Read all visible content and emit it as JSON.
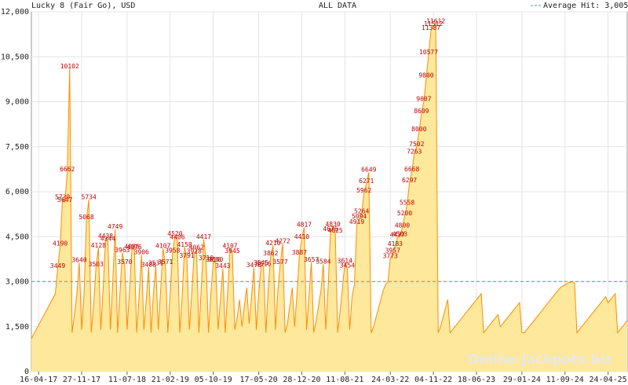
{
  "chart_data": {
    "type": "area",
    "title": "Lucky 8 (Fair Go), USD",
    "subtitle": "ALL DATA",
    "watermark": "Online-Jackpots.biz",
    "color": "#ff8c00",
    "fill": "#fde89b",
    "average": {
      "value": 3005,
      "label": "Average Hit: 3,005",
      "color": "#4a9cc9"
    },
    "grid": true,
    "ylim": [
      0,
      12000
    ],
    "yticks": [
      0,
      {
        "value": 1500,
        "label": "1,500"
      },
      {
        "value": 3000,
        "label": "3,000"
      },
      {
        "value": 4500,
        "label": "4,500"
      },
      {
        "value": 6000,
        "label": "6,000"
      },
      {
        "value": 7500,
        "label": "7,500"
      },
      {
        "value": 9000,
        "label": "9,000"
      },
      {
        "value": 10500,
        "label": "10,500"
      },
      {
        "value": 12000,
        "label": "12,000"
      }
    ],
    "categories": [
      null,
      null,
      null,
      "16-04-17",
      null,
      null,
      null,
      null,
      null,
      null,
      null,
      null,
      null,
      null,
      null,
      null,
      null,
      null,
      null,
      null,
      null,
      "27-11-17",
      null,
      null,
      null,
      null,
      null,
      null,
      null,
      null,
      null,
      null,
      null,
      null,
      null,
      null,
      null,
      null,
      null,
      null,
      "11-07-18",
      null,
      null,
      null,
      null,
      null,
      null,
      null,
      null,
      null,
      null,
      null,
      null,
      null,
      null,
      null,
      null,
      null,
      "21-02-19",
      null,
      null,
      null,
      null,
      null,
      null,
      null,
      null,
      null,
      null,
      null,
      null,
      null,
      null,
      null,
      null,
      null,
      "05-10-19",
      null,
      null,
      null,
      null,
      null,
      null,
      null,
      null,
      null,
      null,
      null,
      null,
      null,
      null,
      null,
      null,
      null,
      null,
      "17-05-20",
      null,
      null,
      null,
      null,
      null,
      null,
      null,
      null,
      null,
      null,
      null,
      null,
      null,
      null,
      null,
      null,
      null,
      "28-12-20",
      null,
      null,
      null,
      null,
      null,
      null,
      null,
      null,
      null,
      null,
      null,
      null,
      null,
      null,
      null,
      null,
      null,
      "11-08-21",
      null,
      null,
      null,
      null,
      null,
      null,
      null,
      null,
      null,
      null,
      null,
      null,
      null,
      null,
      null,
      null,
      null,
      null,
      "24-03-22",
      null,
      null,
      null,
      null,
      null,
      null,
      null,
      null,
      null,
      null,
      null,
      null,
      null,
      null,
      null,
      null,
      null,
      "04-11-22",
      null,
      null,
      null,
      null,
      null,
      null,
      null,
      null,
      null,
      null,
      null,
      null,
      null,
      null,
      null,
      null,
      null,
      "18-06-23",
      null,
      null,
      null,
      null,
      null,
      null,
      null,
      null,
      null,
      null,
      null,
      null,
      null,
      null,
      null,
      null,
      null,
      null,
      "29-01-24",
      null,
      null,
      null,
      null,
      null,
      null,
      null,
      null,
      null,
      null,
      null,
      null,
      null,
      null,
      null,
      null,
      null,
      "11-09-24",
      null,
      null,
      null,
      null,
      null,
      null,
      null,
      null,
      null,
      null,
      null,
      null,
      null,
      null,
      null,
      null,
      null,
      "24-04-25",
      null,
      null,
      null,
      null,
      null,
      null,
      null,
      null
    ],
    "values": [
      1100,
      1250,
      1400,
      1550,
      1700,
      1850,
      2000,
      2150,
      2300,
      2450,
      2600,
      3449,
      4190,
      5739,
      5647,
      6662,
      10102,
      1300,
      1900,
      2600,
      3640,
      1400,
      2600,
      5068,
      5734,
      1300,
      2200,
      3503,
      4128,
      1400,
      2800,
      4438,
      4344,
      1400,
      3000,
      4749,
      1300,
      2600,
      3963,
      3570,
      1400,
      2700,
      4086,
      4076,
      1300,
      2500,
      3906,
      1400,
      2400,
      3488,
      1300,
      2600,
      3531,
      1400,
      2700,
      4107,
      3571,
      1300,
      2600,
      3958,
      4520,
      4406,
      1300,
      2500,
      4158,
      3791,
      1400,
      2600,
      3928,
      4062,
      1300,
      2800,
      4417,
      3710,
      1300,
      2600,
      3656,
      3650,
      1400,
      2400,
      3443,
      1300,
      2600,
      4107,
      3945,
      1400,
      1800,
      2400,
      1500,
      2200,
      2800,
      1600,
      2500,
      3470,
      1400,
      2600,
      3545,
      3516,
      1300,
      2800,
      3862,
      4210,
      1400,
      2700,
      3577,
      4272,
      1300,
      1600,
      2200,
      2800,
      1500,
      2600,
      3887,
      4410,
      4817,
      1400,
      2500,
      3657,
      1300,
      1700,
      2200,
      2700,
      3584,
      1400,
      2800,
      4676,
      4830,
      4625,
      1300,
      2000,
      2800,
      3614,
      3454,
      1400,
      2500,
      2900,
      4919,
      5094,
      5264,
      5962,
      6271,
      6649,
      1300,
      1500,
      1800,
      2100,
      2400,
      2700,
      2900,
      3000,
      3773,
      3957,
      4183,
      4477,
      4503,
      4800,
      5200,
      5558,
      6297,
      6668,
      7263,
      7502,
      8000,
      8609,
      9007,
      9800,
      10577,
      11387,
      11512,
      11612,
      1300,
      1500,
      1800,
      2100,
      2400,
      1300,
      1400,
      1500,
      1600,
      1700,
      1800,
      1900,
      2000,
      2100,
      2200,
      2300,
      2400,
      2500,
      2600,
      1300,
      1400,
      1500,
      1600,
      1700,
      1800,
      1900,
      1500,
      1600,
      1700,
      1800,
      1900,
      2000,
      2100,
      2200,
      2300,
      1300,
      1300,
      1400,
      1500,
      1600,
      1700,
      1800,
      1900,
      2000,
      2100,
      2200,
      2300,
      2400,
      2500,
      2600,
      2700,
      2800,
      2850,
      2900,
      2950,
      2980,
      3000,
      2950,
      1300,
      1400,
      1500,
      1600,
      1700,
      1800,
      1900,
      2000,
      2100,
      2200,
      2300,
      2400,
      2500,
      2300,
      2400,
      2500,
      2600,
      1300,
      1400,
      1500,
      1600,
      1700
    ]
  }
}
